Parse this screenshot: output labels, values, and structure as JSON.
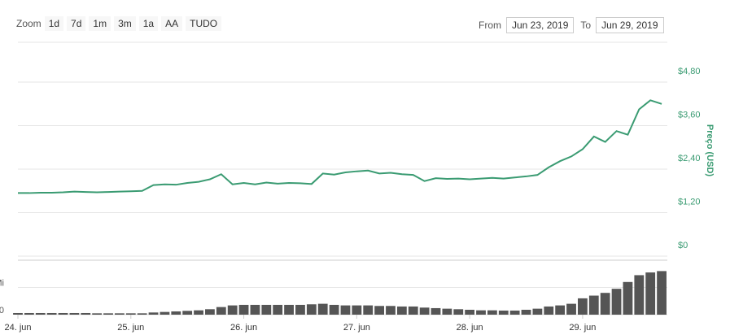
{
  "toolbar": {
    "zoom_label": "Zoom",
    "zoom_buttons": [
      "1d",
      "7d",
      "1m",
      "3m",
      "1a",
      "AA",
      "TUDO"
    ],
    "from_label": "From",
    "from_value": "Jun 23, 2019",
    "to_label": "To",
    "to_value": "Jun 29, 2019"
  },
  "chart_data": {
    "type": "line",
    "y_label": "Preço (USD)",
    "x": [
      24.0,
      24.1,
      24.2,
      24.3,
      24.4,
      24.5,
      24.6,
      24.7,
      24.8,
      24.9,
      25.0,
      25.1,
      25.2,
      25.3,
      25.4,
      25.5,
      25.6,
      25.7,
      25.8,
      25.9,
      26.0,
      26.1,
      26.2,
      26.3,
      26.4,
      26.5,
      26.6,
      26.7,
      26.8,
      26.9,
      27.0,
      27.1,
      27.2,
      27.3,
      27.4,
      27.5,
      27.6,
      27.7,
      27.8,
      27.9,
      28.0,
      28.1,
      28.2,
      28.3,
      28.4,
      28.5,
      28.6,
      28.7,
      28.8,
      28.9,
      29.0,
      29.1,
      29.2,
      29.3,
      29.4,
      29.5,
      29.6,
      29.7
    ],
    "xlim": [
      24,
      29.75
    ],
    "xticks": [
      {
        "value": 24,
        "label": "24. jun"
      },
      {
        "value": 25,
        "label": "25. jun"
      },
      {
        "value": 26,
        "label": "26. jun"
      },
      {
        "value": 27,
        "label": "27. jun"
      },
      {
        "value": 28,
        "label": "28. jun"
      },
      {
        "value": 29,
        "label": "29. jun"
      }
    ],
    "ylim": [
      0,
      5.9
    ],
    "yticks": [
      {
        "value": 0,
        "label": "$0"
      },
      {
        "value": 1.2,
        "label": "$1,20"
      },
      {
        "value": 2.4,
        "label": "$2,40"
      },
      {
        "value": 3.6,
        "label": "$3,60"
      },
      {
        "value": 4.8,
        "label": "$4,80"
      }
    ],
    "y2lim": [
      0,
      2
    ],
    "y2ticks": [
      {
        "value": 0,
        "label": "0"
      },
      {
        "value": 1,
        "label": "Mi"
      }
    ],
    "grid": true,
    "series": [
      {
        "color": "#3a9b72",
        "values": [
          1.74,
          1.74,
          1.75,
          1.75,
          1.76,
          1.78,
          1.77,
          1.76,
          1.77,
          1.78,
          1.79,
          1.8,
          1.96,
          1.98,
          1.97,
          2.02,
          2.05,
          2.12,
          2.26,
          1.98,
          2.02,
          1.98,
          2.03,
          2.0,
          2.02,
          2.01,
          1.99,
          2.28,
          2.25,
          2.31,
          2.34,
          2.36,
          2.28,
          2.3,
          2.26,
          2.24,
          2.07,
          2.15,
          2.13,
          2.14,
          2.12,
          2.14,
          2.16,
          2.14,
          2.17,
          2.2,
          2.24,
          2.45,
          2.62,
          2.75,
          2.95,
          3.3,
          3.15,
          3.45,
          3.35,
          4.05,
          4.3,
          4.2
        ]
      },
      {
        "color": "#555555",
        "axis": "y2",
        "values": [
          0.06,
          0.06,
          0.06,
          0.06,
          0.06,
          0.06,
          0.06,
          0.05,
          0.05,
          0.05,
          0.05,
          0.05,
          0.08,
          0.1,
          0.12,
          0.14,
          0.16,
          0.2,
          0.28,
          0.34,
          0.36,
          0.36,
          0.36,
          0.36,
          0.36,
          0.36,
          0.38,
          0.4,
          0.36,
          0.34,
          0.34,
          0.34,
          0.32,
          0.32,
          0.3,
          0.3,
          0.26,
          0.24,
          0.22,
          0.2,
          0.18,
          0.16,
          0.16,
          0.15,
          0.15,
          0.18,
          0.22,
          0.3,
          0.34,
          0.4,
          0.6,
          0.7,
          0.8,
          0.95,
          1.2,
          1.45,
          1.55,
          1.6
        ]
      }
    ]
  }
}
